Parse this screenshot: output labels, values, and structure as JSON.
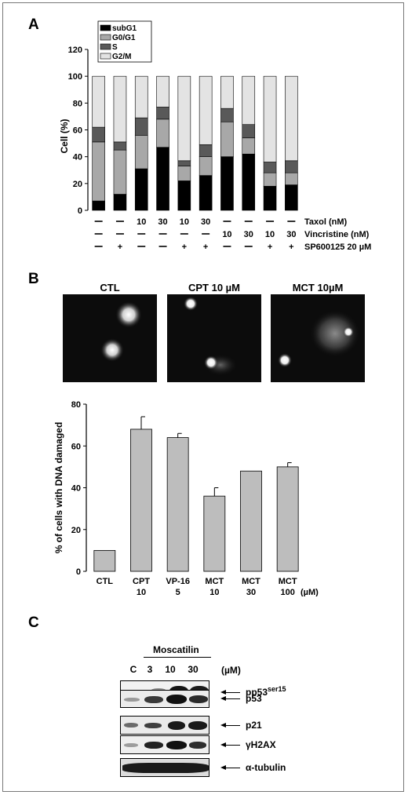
{
  "panel_letters": {
    "a": "A",
    "b": "B",
    "c": "C"
  },
  "chart_data": [
    {
      "type": "bar",
      "stacked": true,
      "ylabel": "Cell (%)",
      "ylim": [
        0,
        120
      ],
      "yticks": [
        "0",
        "20",
        "40",
        "60",
        "80",
        "100",
        "120"
      ],
      "legend": [
        {
          "name": "subG1",
          "color": "#000000"
        },
        {
          "name": "G0/G1",
          "color": "#a8a8a8"
        },
        {
          "name": "S",
          "color": "#595959"
        },
        {
          "name": "G2/M",
          "color": "#e3e3e3"
        }
      ],
      "series": [
        {
          "name": "subG1",
          "values": [
            7,
            12,
            31,
            47,
            22,
            26,
            40,
            42,
            18,
            19
          ]
        },
        {
          "name": "G0/G1",
          "values": [
            44,
            33,
            25,
            21,
            11,
            14,
            26,
            12,
            10,
            9
          ]
        },
        {
          "name": "S",
          "values": [
            11,
            6,
            13,
            9,
            4,
            9,
            10,
            10,
            8,
            9
          ]
        },
        {
          "name": "G2/M",
          "values": [
            38,
            49,
            31,
            23,
            63,
            51,
            24,
            36,
            64,
            63
          ]
        }
      ],
      "treatments": [
        {
          "name": "Taxol (nM)",
          "values": [
            "—",
            "—",
            "10",
            "30",
            "10",
            "30",
            "—",
            "—",
            "—",
            "—"
          ]
        },
        {
          "name": "Vincristine (nM)",
          "values": [
            "—",
            "—",
            "—",
            "—",
            "—",
            "—",
            "10",
            "30",
            "10",
            "30"
          ]
        },
        {
          "name": "SP600125 20 µM",
          "values": [
            "—",
            "+",
            "—",
            "—",
            "+",
            "+",
            "—",
            "—",
            "+",
            "+"
          ]
        }
      ]
    },
    {
      "type": "bar",
      "ylabel": "% of cells with DNA damaged",
      "ylim": [
        0,
        80
      ],
      "yticks": [
        "0",
        "20",
        "40",
        "60",
        "80"
      ],
      "unit": "(µM)",
      "categories": [
        {
          "name": "CTL",
          "dose": ""
        },
        {
          "name": "CPT",
          "dose": "10"
        },
        {
          "name": "VP-16",
          "dose": "5"
        },
        {
          "name": "MCT",
          "dose": "10"
        },
        {
          "name": "MCT",
          "dose": "30"
        },
        {
          "name": "MCT",
          "dose": "100"
        }
      ],
      "values": [
        10,
        68,
        64,
        36,
        48,
        50
      ],
      "errors": [
        0,
        6,
        2,
        4,
        0,
        2
      ],
      "bar_color": "#bdbdbd"
    }
  ],
  "comet": {
    "ctl": "CTL",
    "cpt": "CPT 10 µM",
    "mct": "MCT 10µM"
  },
  "blot": {
    "header": "Moscatilin",
    "unit": "(µM)",
    "lanes": [
      "C",
      "3",
      "10",
      "30"
    ],
    "rows": [
      {
        "label": "pp53",
        "sup": "ser15"
      },
      {
        "label": "p53",
        "sup": ""
      },
      {
        "label": "p21",
        "sup": ""
      },
      {
        "label": "γH2AX",
        "sup": ""
      },
      {
        "label": "α-tubulin",
        "sup": ""
      }
    ]
  }
}
